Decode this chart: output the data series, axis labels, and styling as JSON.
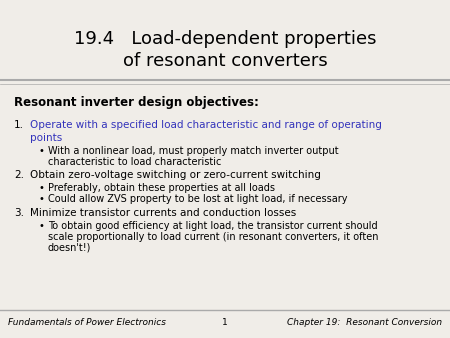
{
  "title_line1": "19.4   Load-dependent properties",
  "title_line2": "of resonant converters",
  "title_fontsize": 13,
  "title_color": "#000000",
  "slide_bg": "#f0ede8",
  "bold_heading": "Resonant inverter design objectives:",
  "item1_color": "#3333bb",
  "item2_color": "#000000",
  "item3_color": "#000000",
  "footer_left": "Fundamentals of Power Electronics",
  "footer_center": "1",
  "footer_right": "Chapter 19:  Resonant Conversion",
  "footer_fontsize": 6.5,
  "separator_color": "#aaaaaa",
  "text_fontsize": 7.5,
  "sub_fontsize": 7.0,
  "heading_fontsize": 8.5
}
